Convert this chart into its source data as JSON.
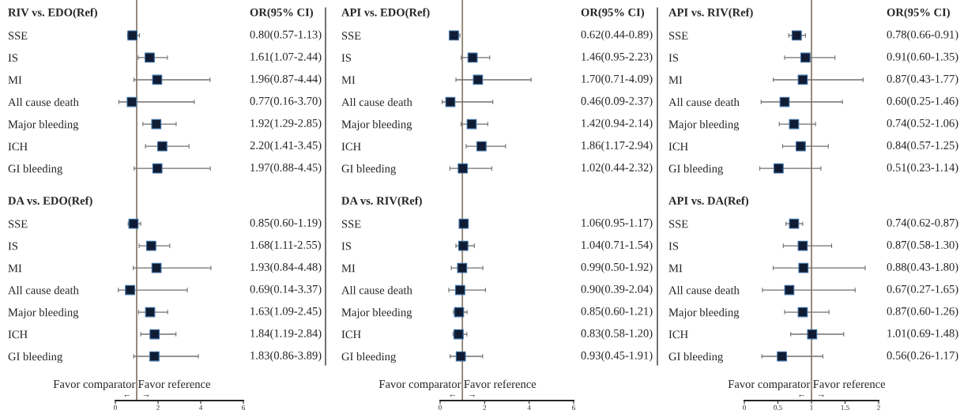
{
  "chart_data": [
    {
      "type": "scatter",
      "orientation": "horizontal",
      "title": "RIV vs. EDO(Ref)",
      "categories": [
        "SSE",
        "IS",
        "MI",
        "All cause death",
        "Major bleeding",
        "ICH",
        "GI bleeding"
      ],
      "series": [
        {
          "color": "#101c33",
          "values": [
            0.8,
            1.61,
            1.96,
            0.77,
            1.92,
            2.2,
            1.97
          ],
          "errors": [
            [
              0.57,
              1.13
            ],
            [
              1.07,
              2.44
            ],
            [
              0.87,
              4.44
            ],
            [
              0.16,
              3.7
            ],
            [
              1.29,
              2.85
            ],
            [
              1.41,
              3.45
            ],
            [
              0.88,
              4.45
            ]
          ],
          "value_labels": [
            "0.80(0.57-1.13)",
            "1.61(1.07-2.44)",
            "1.96(0.87-4.44)",
            "0.77(0.16-3.70)",
            "1.92(1.29-2.85)",
            "2.20(1.41-3.45)",
            "1.97(0.88-4.45)"
          ]
        }
      ],
      "xlim": [
        0,
        6
      ],
      "xticks": [
        0,
        2,
        4,
        6
      ],
      "tick_labels": "y",
      "marker": "square",
      "grid": false,
      "legend": false,
      "ref_lines": [
        {
          "axis": "x",
          "value": 1,
          "color": "#8c8070"
        }
      ],
      "annotations": [
        "OR(95% CI)"
      ]
    },
    {
      "type": "scatter",
      "orientation": "horizontal",
      "title": "API vs. EDO(Ref)",
      "categories": [
        "SSE",
        "IS",
        "MI",
        "All cause death",
        "Major bleeding",
        "ICH",
        "GI bleeding"
      ],
      "series": [
        {
          "color": "#101c33",
          "values": [
            0.62,
            1.46,
            1.7,
            0.46,
            1.42,
            1.86,
            1.02
          ],
          "errors": [
            [
              0.44,
              0.89
            ],
            [
              0.95,
              2.23
            ],
            [
              0.71,
              4.09
            ],
            [
              0.09,
              2.37
            ],
            [
              0.94,
              2.14
            ],
            [
              1.17,
              2.94
            ],
            [
              0.44,
              2.32
            ]
          ],
          "value_labels": [
            "0.62(0.44-0.89)",
            "1.46(0.95-2.23)",
            "1.70(0.71-4.09)",
            "0.46(0.09-2.37)",
            "1.42(0.94-2.14)",
            "1.86(1.17-2.94)",
            "1.02(0.44-2.32)"
          ]
        }
      ],
      "xlim": [
        0,
        6
      ],
      "xticks": [
        0,
        2,
        4,
        6
      ],
      "tick_labels": "y",
      "marker": "square",
      "grid": false,
      "legend": false,
      "ref_lines": [
        {
          "axis": "x",
          "value": 1,
          "color": "#8c8070"
        }
      ],
      "annotations": [
        "OR(95% CI)"
      ]
    },
    {
      "type": "scatter",
      "orientation": "horizontal",
      "title": "API vs. RIV(Ref)",
      "categories": [
        "SSE",
        "IS",
        "MI",
        "All cause death",
        "Major bleeding",
        "ICH",
        "GI bleeding"
      ],
      "series": [
        {
          "color": "#101c33",
          "values": [
            0.78,
            0.91,
            0.87,
            0.6,
            0.74,
            0.84,
            0.51
          ],
          "errors": [
            [
              0.66,
              0.91
            ],
            [
              0.6,
              1.35
            ],
            [
              0.43,
              1.77
            ],
            [
              0.25,
              1.46
            ],
            [
              0.52,
              1.06
            ],
            [
              0.57,
              1.25
            ],
            [
              0.23,
              1.14
            ]
          ],
          "value_labels": [
            "0.78(0.66-0.91)",
            "0.91(0.60-1.35)",
            "0.87(0.43-1.77)",
            "0.60(0.25-1.46)",
            "0.74(0.52-1.06)",
            "0.84(0.57-1.25)",
            "0.51(0.23-1.14)"
          ]
        }
      ],
      "xlim": [
        0,
        2
      ],
      "xticks": [
        0,
        0.5,
        1,
        1.5,
        2
      ],
      "tick_labels": "y",
      "marker": "square",
      "grid": false,
      "legend": false,
      "ref_lines": [
        {
          "axis": "x",
          "value": 1,
          "color": "#8c8070"
        }
      ],
      "annotations": [
        "OR(95% CI)"
      ]
    },
    {
      "type": "scatter",
      "orientation": "horizontal",
      "title": "DA vs. EDO(Ref)",
      "categories": [
        "SSE",
        "IS",
        "MI",
        "All cause death",
        "Major bleeding",
        "ICH",
        "GI bleeding"
      ],
      "series": [
        {
          "color": "#101c33",
          "values": [
            0.85,
            1.68,
            1.93,
            0.69,
            1.63,
            1.84,
            1.83
          ],
          "errors": [
            [
              0.6,
              1.19
            ],
            [
              1.11,
              2.55
            ],
            [
              0.84,
              4.48
            ],
            [
              0.14,
              3.37
            ],
            [
              1.09,
              2.45
            ],
            [
              1.19,
              2.84
            ],
            [
              0.86,
              3.89
            ]
          ],
          "value_labels": [
            "0.85(0.60-1.19)",
            "1.68(1.11-2.55)",
            "1.93(0.84-4.48)",
            "0.69(0.14-3.37)",
            "1.63(1.09-2.45)",
            "1.84(1.19-2.84)",
            "1.83(0.86-3.89)"
          ]
        }
      ],
      "xlim": [
        0,
        6
      ],
      "xticks": [
        0,
        2,
        4,
        6
      ],
      "marker": "square",
      "grid": false,
      "legend": false,
      "ref_lines": [
        {
          "axis": "x",
          "value": 1,
          "color": "#8c8070"
        }
      ],
      "annotations": [
        "Favor comparator",
        "Favor reference",
        "←",
        "→"
      ]
    },
    {
      "type": "scatter",
      "orientation": "horizontal",
      "title": "DA vs. RIV(Ref)",
      "categories": [
        "SSE",
        "IS",
        "MI",
        "All cause death",
        "Major bleeding",
        "ICH",
        "GI bleeding"
      ],
      "series": [
        {
          "color": "#101c33",
          "values": [
            1.06,
            1.04,
            0.99,
            0.9,
            0.85,
            0.83,
            0.93
          ],
          "errors": [
            [
              0.95,
              1.17
            ],
            [
              0.71,
              1.54
            ],
            [
              0.5,
              1.92
            ],
            [
              0.39,
              2.04
            ],
            [
              0.6,
              1.21
            ],
            [
              0.58,
              1.2
            ],
            [
              0.45,
              1.91
            ]
          ],
          "value_labels": [
            "1.06(0.95-1.17)",
            "1.04(0.71-1.54)",
            "0.99(0.50-1.92)",
            "0.90(0.39-2.04)",
            "0.85(0.60-1.21)",
            "0.83(0.58-1.20)",
            "0.93(0.45-1.91)"
          ]
        }
      ],
      "xlim": [
        0,
        6
      ],
      "xticks": [
        0,
        2,
        4,
        6
      ],
      "marker": "square",
      "grid": false,
      "legend": false,
      "ref_lines": [
        {
          "axis": "x",
          "value": 1,
          "color": "#8c8070"
        }
      ],
      "annotations": [
        "Favor comparator",
        "Favor reference",
        "←",
        "→"
      ]
    },
    {
      "type": "scatter",
      "orientation": "horizontal",
      "title": "API vs. DA(Ref)",
      "categories": [
        "SSE",
        "IS",
        "MI",
        "All cause death",
        "Major bleeding",
        "ICH",
        "GI bleeding"
      ],
      "series": [
        {
          "color": "#101c33",
          "values": [
            0.74,
            0.87,
            0.88,
            0.67,
            0.87,
            1.01,
            0.56
          ],
          "errors": [
            [
              0.62,
              0.87
            ],
            [
              0.58,
              1.3
            ],
            [
              0.43,
              1.8
            ],
            [
              0.27,
              1.65
            ],
            [
              0.6,
              1.26
            ],
            [
              0.69,
              1.48
            ],
            [
              0.26,
              1.17
            ]
          ],
          "value_labels": [
            "0.74(0.62-0.87)",
            "0.87(0.58-1.30)",
            "0.88(0.43-1.80)",
            "0.67(0.27-1.65)",
            "0.87(0.60-1.26)",
            "1.01(0.69-1.48)",
            "0.56(0.26-1.17)"
          ]
        }
      ],
      "xlim": [
        0,
        2
      ],
      "xticks": [
        0,
        0.5,
        1,
        1.5,
        2
      ],
      "marker": "square",
      "grid": false,
      "legend": false,
      "ref_lines": [
        {
          "axis": "x",
          "value": 1,
          "color": "#8c8070"
        }
      ],
      "annotations": [
        "Favor comparator",
        "Favor reference",
        "←",
        "→"
      ]
    }
  ]
}
